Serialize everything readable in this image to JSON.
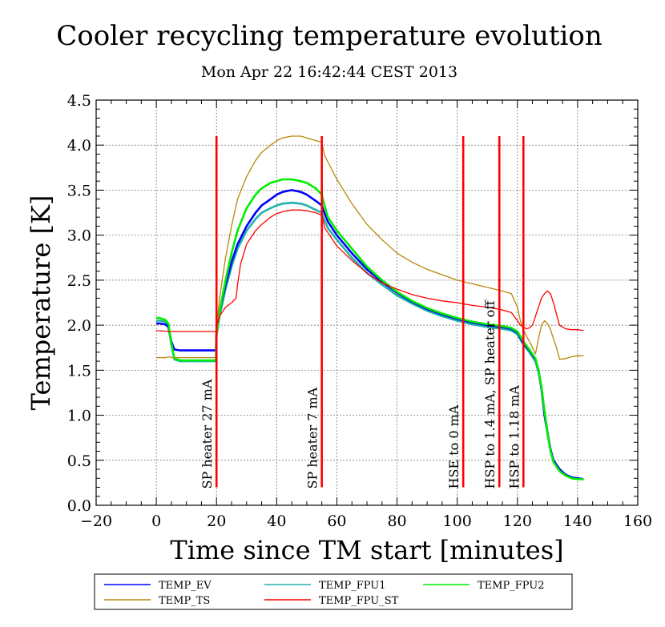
{
  "chart_data": {
    "type": "line",
    "title": "Cooler recycling temperature evolution",
    "subtitle": "Mon Apr 22 16:42:44 CEST 2013",
    "xlabel": "Time since TM start [minutes]",
    "ylabel": "Temperature [K]",
    "xlim": [
      -20,
      160
    ],
    "ylim": [
      0.0,
      4.5
    ],
    "x_ticks": [
      -20,
      0,
      20,
      40,
      60,
      80,
      100,
      120,
      140,
      160
    ],
    "x_tick_labels": [
      "−20",
      "0",
      "20",
      "40",
      "60",
      "80",
      "100",
      "120",
      "140",
      "160"
    ],
    "y_ticks": [
      0.0,
      0.5,
      1.0,
      1.5,
      2.0,
      2.5,
      3.0,
      3.5,
      4.0,
      4.5
    ],
    "y_tick_labels": [
      "0.0",
      "0.5",
      "1.0",
      "1.5",
      "2.0",
      "2.5",
      "3.0",
      "3.5",
      "4.0",
      "4.5"
    ],
    "grid": true,
    "legend_position": "bottom",
    "series": [
      {
        "name": "TEMP_EV",
        "color": "#0000ff",
        "x": [
          0,
          1,
          3,
          4,
          5,
          6,
          8,
          10,
          12,
          15,
          18,
          19.8,
          20,
          21,
          23,
          25,
          27,
          30,
          33,
          35,
          38,
          40,
          42,
          45,
          48,
          50,
          53,
          55,
          55.5,
          57,
          60,
          65,
          70,
          75,
          80,
          85,
          90,
          95,
          100,
          105,
          110,
          115,
          118,
          120,
          122,
          124,
          126,
          127,
          128,
          129,
          130,
          131,
          132,
          134,
          136,
          138,
          140,
          142
        ],
        "y": [
          2.02,
          2.02,
          2.01,
          1.98,
          1.82,
          1.73,
          1.72,
          1.72,
          1.72,
          1.72,
          1.72,
          1.72,
          1.93,
          2.15,
          2.45,
          2.7,
          2.9,
          3.1,
          3.25,
          3.33,
          3.4,
          3.45,
          3.48,
          3.5,
          3.48,
          3.45,
          3.38,
          3.33,
          3.28,
          3.15,
          3.0,
          2.8,
          2.62,
          2.48,
          2.36,
          2.26,
          2.18,
          2.12,
          2.07,
          2.03,
          2.0,
          1.98,
          1.96,
          1.92,
          1.8,
          1.72,
          1.62,
          1.5,
          1.3,
          1.0,
          0.8,
          0.62,
          0.5,
          0.4,
          0.34,
          0.31,
          0.3,
          0.29
        ]
      },
      {
        "name": "TEMP_FPU1",
        "color": "#20b2aa",
        "x": [
          0,
          1,
          3,
          4,
          5,
          6,
          8,
          10,
          12,
          15,
          18,
          19.8,
          20,
          21,
          23,
          25,
          27,
          30,
          33,
          35,
          38,
          40,
          42,
          45,
          48,
          50,
          53,
          55,
          55.5,
          57,
          60,
          65,
          70,
          75,
          80,
          85,
          90,
          95,
          100,
          105,
          110,
          115,
          118,
          120,
          122,
          124,
          126,
          127,
          128,
          129,
          130,
          131,
          132,
          134,
          136,
          138,
          140,
          142
        ],
        "y": [
          2.05,
          2.05,
          2.04,
          2.0,
          1.78,
          1.62,
          1.6,
          1.6,
          1.6,
          1.6,
          1.6,
          1.6,
          1.88,
          2.1,
          2.4,
          2.65,
          2.85,
          3.05,
          3.18,
          3.25,
          3.3,
          3.33,
          3.35,
          3.36,
          3.35,
          3.33,
          3.28,
          3.25,
          3.2,
          3.08,
          2.95,
          2.75,
          2.58,
          2.45,
          2.33,
          2.24,
          2.16,
          2.1,
          2.05,
          2.01,
          1.98,
          1.96,
          1.94,
          1.9,
          1.78,
          1.7,
          1.6,
          1.48,
          1.3,
          1.05,
          0.82,
          0.62,
          0.5,
          0.4,
          0.34,
          0.31,
          0.3,
          0.29
        ]
      },
      {
        "name": "TEMP_FPU2",
        "color": "#00ee00",
        "x": [
          0,
          1,
          3,
          4,
          5,
          6,
          8,
          10,
          12,
          15,
          18,
          19.8,
          20,
          21,
          23,
          25,
          27,
          30,
          33,
          35,
          38,
          40,
          42,
          45,
          48,
          50,
          53,
          55,
          55.5,
          57,
          60,
          65,
          70,
          75,
          80,
          85,
          90,
          95,
          100,
          105,
          110,
          115,
          118,
          120,
          122,
          124,
          126,
          127,
          128,
          129,
          130,
          131,
          132,
          134,
          136,
          138,
          140,
          142
        ],
        "y": [
          2.08,
          2.08,
          2.06,
          2.02,
          1.8,
          1.63,
          1.61,
          1.61,
          1.61,
          1.61,
          1.61,
          1.61,
          1.9,
          2.15,
          2.5,
          2.8,
          3.05,
          3.3,
          3.45,
          3.52,
          3.58,
          3.6,
          3.62,
          3.62,
          3.6,
          3.58,
          3.52,
          3.45,
          3.38,
          3.2,
          3.05,
          2.85,
          2.65,
          2.5,
          2.37,
          2.27,
          2.19,
          2.13,
          2.08,
          2.04,
          2.01,
          1.99,
          1.97,
          1.93,
          1.82,
          1.73,
          1.63,
          1.5,
          1.32,
          1.05,
          0.8,
          0.6,
          0.48,
          0.38,
          0.33,
          0.3,
          0.29,
          0.29
        ]
      },
      {
        "name": "TEMP_TS",
        "color": "#b8860b",
        "x": [
          0,
          3,
          4.5,
          5,
          10,
          15,
          19.8,
          20,
          21,
          23,
          25,
          27,
          30,
          33,
          35,
          38,
          40,
          42,
          45,
          48,
          50,
          53,
          55,
          55.5,
          56,
          58,
          60,
          65,
          70,
          75,
          80,
          85,
          90,
          95,
          100,
          105,
          110,
          115,
          118,
          120,
          121,
          122,
          123,
          124,
          125,
          126,
          127,
          128,
          129,
          130,
          131,
          132,
          133,
          134,
          136,
          138,
          140,
          142
        ],
        "y": [
          1.64,
          1.64,
          1.65,
          1.64,
          1.64,
          1.64,
          1.64,
          1.95,
          2.3,
          2.75,
          3.1,
          3.4,
          3.65,
          3.83,
          3.92,
          4.0,
          4.05,
          4.08,
          4.1,
          4.1,
          4.08,
          4.05,
          4.03,
          3.95,
          3.88,
          3.75,
          3.62,
          3.35,
          3.12,
          2.95,
          2.8,
          2.7,
          2.62,
          2.56,
          2.5,
          2.46,
          2.42,
          2.38,
          2.35,
          2.2,
          2.05,
          1.95,
          1.88,
          1.82,
          1.75,
          1.68,
          1.85,
          2.0,
          2.05,
          2.02,
          1.95,
          1.85,
          1.75,
          1.62,
          1.63,
          1.65,
          1.66,
          1.66
        ]
      },
      {
        "name": "TEMP_FPU_ST",
        "color": "#ff0000",
        "x": [
          0,
          5,
          10,
          15,
          19.8,
          20,
          21,
          23,
          25,
          26.5,
          27,
          28,
          30,
          33,
          35,
          38,
          40,
          42,
          45,
          48,
          50,
          53,
          55,
          55.5,
          56,
          58,
          60,
          65,
          70,
          75,
          80,
          85,
          90,
          95,
          100,
          105,
          110,
          115,
          118,
          120,
          121,
          122,
          123,
          124,
          125,
          126,
          127,
          128,
          129,
          130,
          131,
          132,
          133,
          134,
          136,
          138,
          140,
          142
        ],
        "y": [
          1.94,
          1.93,
          1.93,
          1.93,
          1.93,
          1.98,
          2.1,
          2.2,
          2.25,
          2.3,
          2.45,
          2.68,
          2.9,
          3.05,
          3.12,
          3.2,
          3.24,
          3.26,
          3.28,
          3.28,
          3.27,
          3.25,
          3.22,
          3.15,
          3.08,
          2.98,
          2.88,
          2.72,
          2.58,
          2.47,
          2.4,
          2.34,
          2.3,
          2.27,
          2.25,
          2.22,
          2.2,
          2.17,
          2.14,
          2.05,
          2.0,
          1.98,
          1.96,
          1.97,
          2.0,
          2.1,
          2.2,
          2.3,
          2.35,
          2.38,
          2.35,
          2.25,
          2.12,
          2.0,
          1.96,
          1.95,
          1.95,
          1.94
        ]
      }
    ],
    "annotations": [
      {
        "x": 20,
        "label": "SP heater 27 mA"
      },
      {
        "x": 55,
        "label": "SP heater 7 mA"
      },
      {
        "x": 102,
        "label": "HSE to 0 mA"
      },
      {
        "x": 114,
        "label": "HSP to 1.4 mA, SP heater off"
      },
      {
        "x": 122,
        "label": "HSP to 1.18 mA"
      }
    ],
    "annotation_line_color": "#ff0000",
    "annotation_line_range": [
      0.2,
      4.1
    ]
  }
}
